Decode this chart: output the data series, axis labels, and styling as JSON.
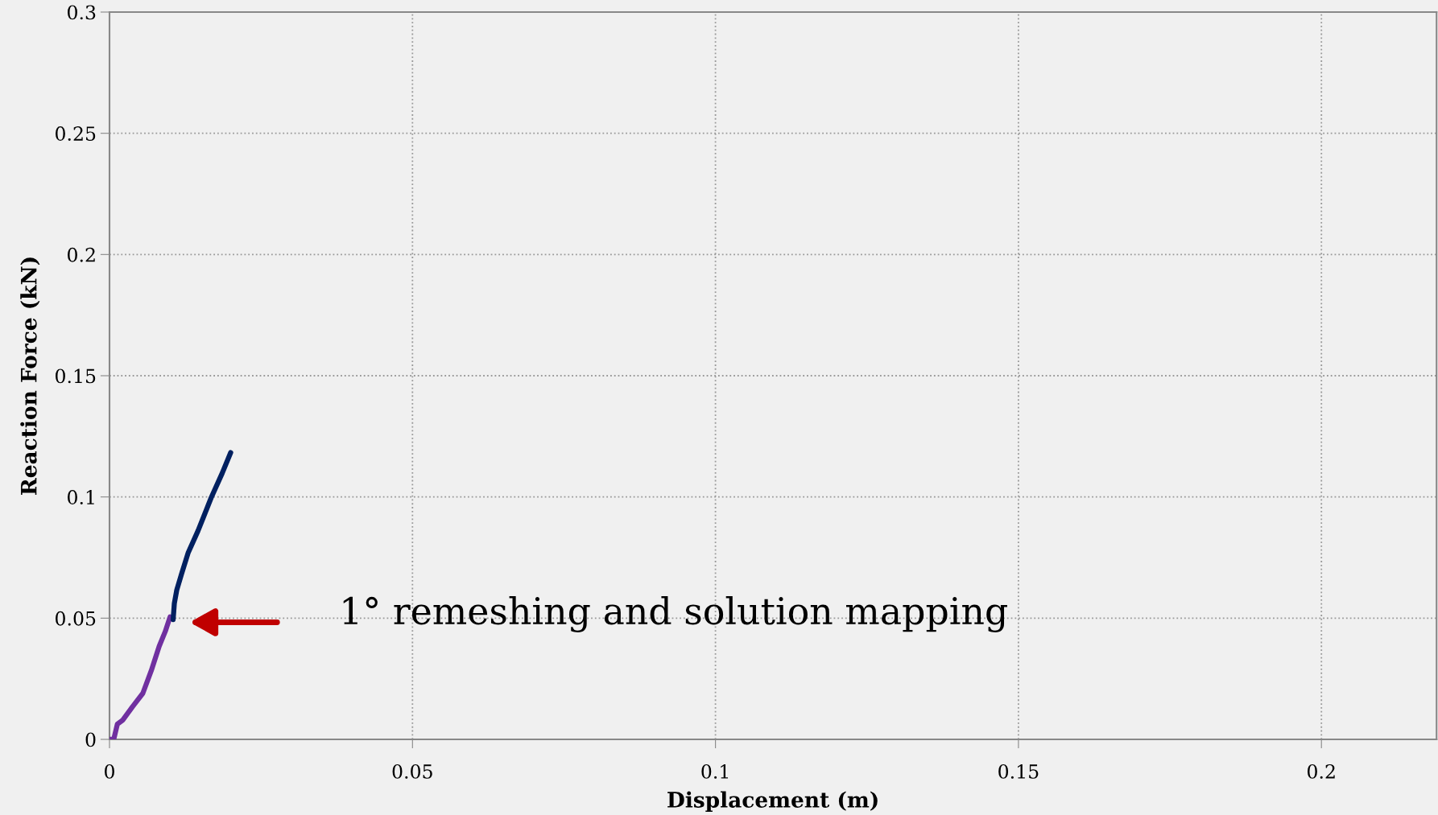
{
  "chart_data": {
    "type": "line",
    "xlabel": "Displacement (m)",
    "ylabel": "Reaction Force (kN)",
    "series": [
      {
        "color": "#7030a0",
        "x": [
          0,
          0.0007,
          0.0013,
          0.0022,
          0.0038,
          0.0055,
          0.0069,
          0.0082,
          0.0092,
          0.01
        ],
        "values": [
          0,
          0,
          0.0063,
          0.008,
          0.0135,
          0.019,
          0.0284,
          0.0384,
          0.0445,
          0.0505
        ]
      },
      {
        "color": "#002060",
        "x": [
          0.0105,
          0.0107,
          0.0111,
          0.0119,
          0.013,
          0.0146,
          0.0168,
          0.0186,
          0.02
        ],
        "values": [
          0.0494,
          0.0561,
          0.0616,
          0.0683,
          0.0771,
          0.086,
          0.0998,
          0.1098,
          0.1183
        ]
      }
    ],
    "annotations": [
      "1° remeshing and solution mapping"
    ],
    "xlim": [
      0,
      0.219
    ],
    "xticks": [
      0,
      0.05,
      0.1,
      0.15,
      0.2
    ],
    "ylim": [
      0,
      0.3
    ],
    "yticks": [
      0,
      0.05,
      0.1,
      0.15,
      0.2,
      0.25,
      0.3
    ],
    "grid": true,
    "line_style": "solid",
    "marker": "none"
  }
}
